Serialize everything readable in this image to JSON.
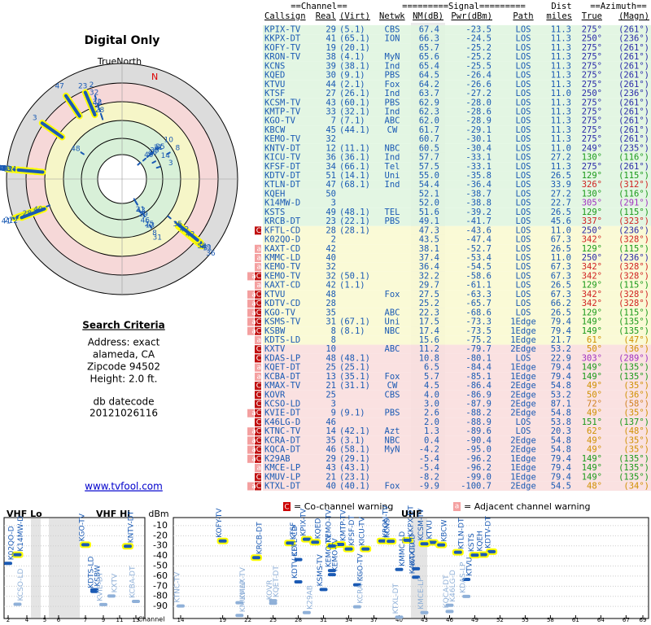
{
  "radar": {
    "title": "Digital Only",
    "north": "TrueNorth",
    "n": "N"
  },
  "criteria": {
    "heading": "Search Criteria",
    "lines": [
      "Address: exact",
      "alameda, CA",
      "Zipcode 94502",
      "Height: 2.0 ft."
    ],
    "db": "db datecode",
    "code": "20121026116",
    "link": "www.tvfool.com"
  },
  "table": {
    "head1": {
      "channel": "==Channel==",
      "signal": "=========Signal=========",
      "dist": "Dist",
      "azimuth": "==Azimuth=="
    },
    "head2": {
      "cs": "Callsign",
      "ch": "Real",
      "virt": "(Virt)",
      "net": "Netwk",
      "nm": "NM(dB)",
      "pwr": "Pwr(dBm)",
      "path": "Path",
      "dist": "miles",
      "az": "True",
      "mag": "(Magn)"
    },
    "rows": [
      {
        "cs": "KPIX-TV",
        "ch": "29",
        "virt": "(5.1)",
        "net": "CBS",
        "nm": "67.4",
        "pwr": "-23.5",
        "path": "LOS",
        "dist": "11.3",
        "az": "275°",
        "mag": "(261°)"
      },
      {
        "cs": "KKPX-DT",
        "ch": "41",
        "virt": "(65.1)",
        "net": "ION",
        "nm": "66.3",
        "pwr": "-24.5",
        "path": "LOS",
        "dist": "11.3",
        "az": "250°",
        "mag": "(236°)"
      },
      {
        "cs": "KOFY-TV",
        "ch": "19",
        "virt": "(20.1)",
        "nm": "65.7",
        "pwr": "-25.2",
        "path": "LOS",
        "dist": "11.3",
        "az": "275°",
        "mag": "(261°)"
      },
      {
        "cs": "KRON-TV",
        "ch": "38",
        "virt": "(4.1)",
        "net": "MyN",
        "nm": "65.6",
        "pwr": "-25.2",
        "path": "LOS",
        "dist": "11.3",
        "az": "275°",
        "mag": "(261°)"
      },
      {
        "cs": "KCNS",
        "ch": "39",
        "virt": "(38.1)",
        "net": "Ind",
        "nm": "65.4",
        "pwr": "-25.5",
        "path": "LOS",
        "dist": "11.3",
        "az": "275°",
        "mag": "(261°)"
      },
      {
        "cs": "KQED",
        "ch": "30",
        "virt": "(9.1)",
        "net": "PBS",
        "nm": "64.5",
        "pwr": "-26.4",
        "path": "LOS",
        "dist": "11.3",
        "az": "275°",
        "mag": "(261°)"
      },
      {
        "cs": "KTVU",
        "ch": "44",
        "virt": "(2.1)",
        "net": "Fox",
        "nm": "64.2",
        "pwr": "-26.6",
        "path": "LOS",
        "dist": "11.3",
        "az": "275°",
        "mag": "(261°)"
      },
      {
        "cs": "KTSF",
        "ch": "27",
        "virt": "(26.1)",
        "net": "Ind",
        "nm": "63.7",
        "pwr": "-27.2",
        "path": "LOS",
        "dist": "11.0",
        "az": "250°",
        "mag": "(236°)"
      },
      {
        "cs": "KCSM-TV",
        "ch": "43",
        "virt": "(60.1)",
        "net": "PBS",
        "nm": "62.9",
        "pwr": "-28.0",
        "path": "LOS",
        "dist": "11.3",
        "az": "275°",
        "mag": "(261°)"
      },
      {
        "cs": "KMTP-TV",
        "ch": "33",
        "virt": "(32.1)",
        "net": "Ind",
        "nm": "62.3",
        "pwr": "-28.6",
        "path": "LOS",
        "dist": "11.3",
        "az": "275°",
        "mag": "(261°)"
      },
      {
        "cs": "KGO-TV",
        "ch": "7",
        "virt": "(7.1)",
        "net": "ABC",
        "nm": "62.0",
        "pwr": "-28.9",
        "path": "LOS",
        "dist": "11.3",
        "az": "275°",
        "mag": "(261°)"
      },
      {
        "cs": "KBCW",
        "ch": "45",
        "virt": "(44.1)",
        "net": "CW",
        "nm": "61.7",
        "pwr": "-29.1",
        "path": "LOS",
        "dist": "11.3",
        "az": "275°",
        "mag": "(261°)"
      },
      {
        "cs": "KEMO-TV",
        "ch": "32",
        "nm": "60.7",
        "pwr": "-30.1",
        "path": "LOS",
        "dist": "11.3",
        "az": "275°",
        "mag": "(261°)"
      },
      {
        "cs": "KNTV-DT",
        "ch": "12",
        "virt": "(11.1)",
        "net": "NBC",
        "nm": "60.5",
        "pwr": "-30.4",
        "path": "LOS",
        "dist": "11.0",
        "az": "249°",
        "mag": "(235°)"
      },
      {
        "cs": "KICU-TV",
        "ch": "36",
        "virt": "(36.1)",
        "net": "Ind",
        "nm": "57.7",
        "pwr": "-33.1",
        "path": "LOS",
        "dist": "27.2",
        "az": "130°",
        "mag": "(116°)"
      },
      {
        "cs": "KFSF-DT",
        "ch": "34",
        "virt": "(66.1)",
        "net": "Tel",
        "nm": "57.5",
        "pwr": "-33.1",
        "path": "LOS",
        "dist": "11.3",
        "az": "275°",
        "mag": "(261°)"
      },
      {
        "cs": "KDTV-DT",
        "ch": "51",
        "virt": "(14.1)",
        "net": "Uni",
        "nm": "55.0",
        "pwr": "-35.8",
        "path": "LOS",
        "dist": "26.5",
        "az": "129°",
        "mag": "(115°)"
      },
      {
        "cs": "KTLN-DT",
        "ch": "47",
        "virt": "(68.1)",
        "net": "Ind",
        "nm": "54.4",
        "pwr": "-36.4",
        "path": "LOS",
        "dist": "33.9",
        "az": "326°",
        "mag": "(312°)"
      },
      {
        "cs": "KQEH",
        "ch": "50",
        "nm": "52.1",
        "pwr": "-38.7",
        "path": "LOS",
        "dist": "27.2",
        "az": "130°",
        "mag": "(116°)"
      },
      {
        "cs": "K14MW-D",
        "ch": "3",
        "nm": "52.0",
        "pwr": "-38.8",
        "path": "LOS",
        "dist": "22.7",
        "az": "305°",
        "mag": "(291°)"
      },
      {
        "cs": "KSTS",
        "ch": "49",
        "virt": "(48.1)",
        "net": "TEL",
        "nm": "51.6",
        "pwr": "-39.2",
        "path": "LOS",
        "dist": "26.5",
        "az": "129°",
        "mag": "(115°)"
      },
      {
        "cs": "KRCB-DT",
        "ch": "23",
        "virt": "(22.1)",
        "net": "PBS",
        "nm": "49.1",
        "pwr": "-41.7",
        "path": "LOS",
        "dist": "45.6",
        "az": "337°",
        "mag": "(323°)"
      },
      {
        "cs": "KFTL-CD",
        "ch": "28",
        "virt": "(28.1)",
        "nm": "47.3",
        "pwr": "-43.6",
        "path": "LOS",
        "dist": "11.0",
        "az": "250°",
        "mag": "(236°)",
        "warn": "C"
      },
      {
        "cs": "K02QO-D",
        "ch": "2",
        "nm": "43.5",
        "pwr": "-47.4",
        "path": "LOS",
        "dist": "67.3",
        "az": "342°",
        "mag": "(328°)"
      },
      {
        "cs": "KAXT-CD",
        "ch": "42",
        "nm": "38.1",
        "pwr": "-52.7",
        "path": "LOS",
        "dist": "26.5",
        "az": "129°",
        "mag": "(115°)",
        "warn": "a"
      },
      {
        "cs": "KMMC-LD",
        "ch": "40",
        "nm": "37.4",
        "pwr": "-53.4",
        "path": "LOS",
        "dist": "11.0",
        "az": "250°",
        "mag": "(236°)",
        "warn": "a"
      },
      {
        "cs": "KEMO-TV",
        "ch": "32",
        "nm": "36.4",
        "pwr": "-54.5",
        "path": "LOS",
        "dist": "67.3",
        "az": "342°",
        "mag": "(328°)",
        "warn": "a"
      },
      {
        "cs": "KEMO-TV",
        "ch": "32",
        "virt": "(50.1)",
        "nm": "32.2",
        "pwr": "-58.6",
        "path": "LOS",
        "dist": "67.3",
        "az": "342°",
        "mag": "(328°)",
        "warn": "aC"
      },
      {
        "cs": "KAXT-CD",
        "ch": "42",
        "virt": "(1.1)",
        "nm": "29.7",
        "pwr": "-61.1",
        "path": "LOS",
        "dist": "26.5",
        "az": "129°",
        "mag": "(115°)",
        "warn": "a"
      },
      {
        "cs": "KTVU",
        "ch": "48",
        "net": "Fox",
        "nm": "27.5",
        "pwr": "-63.3",
        "path": "LOS",
        "dist": "67.3",
        "az": "342°",
        "mag": "(328°)",
        "warn": "aC"
      },
      {
        "cs": "KDTV-CD",
        "ch": "28",
        "nm": "25.2",
        "pwr": "-65.7",
        "path": "LOS",
        "dist": "66.2",
        "az": "342°",
        "mag": "(328°)",
        "warn": "aC"
      },
      {
        "cs": "KGO-TV",
        "ch": "35",
        "net": "ABC",
        "nm": "22.3",
        "pwr": "-68.6",
        "path": "LOS",
        "dist": "26.5",
        "az": "129°",
        "mag": "(115°)",
        "warn": "aC"
      },
      {
        "cs": "KSMS-TV",
        "ch": "31",
        "virt": "(67.1)",
        "net": "Uni",
        "nm": "17.5",
        "pwr": "-73.3",
        "path": "1Edge",
        "dist": "79.4",
        "az": "149°",
        "mag": "(135°)",
        "warn": "aC"
      },
      {
        "cs": "KSBW",
        "ch": "8",
        "virt": "(8.1)",
        "net": "NBC",
        "nm": "17.4",
        "pwr": "-73.5",
        "path": "1Edge",
        "dist": "79.4",
        "az": "149°",
        "mag": "(135°)",
        "warn": "aC"
      },
      {
        "cs": "KDTS-LD",
        "ch": "8",
        "nm": "15.6",
        "pwr": "-75.2",
        "path": "1Edge",
        "dist": "21.7",
        "az": "61°",
        "mag": "(47°)",
        "warn": "a"
      },
      {
        "cs": "KXTV",
        "ch": "10",
        "net": "ABC",
        "nm": "11.2",
        "pwr": "-79.7",
        "path": "2Edge",
        "dist": "53.2",
        "az": "50°",
        "mag": "(36°)",
        "warn": "C"
      },
      {
        "cs": "KDAS-LP",
        "ch": "48",
        "virt": "(48.1)",
        "nm": "10.8",
        "pwr": "-80.1",
        "path": "LOS",
        "dist": "22.9",
        "az": "303°",
        "mag": "(289°)",
        "warn": "C"
      },
      {
        "cs": "KQET-DT",
        "ch": "25",
        "virt": "(25.1)",
        "nm": "6.5",
        "pwr": "-84.4",
        "path": "1Edge",
        "dist": "79.4",
        "az": "149°",
        "mag": "(135°)",
        "warn": "a"
      },
      {
        "cs": "KCBA-DT",
        "ch": "13",
        "virt": "(35.1)",
        "net": "Fox",
        "nm": "5.7",
        "pwr": "-85.1",
        "path": "1Edge",
        "dist": "79.4",
        "az": "149°",
        "mag": "(135°)",
        "warn": "a"
      },
      {
        "cs": "KMAX-TV",
        "ch": "21",
        "virt": "(31.1)",
        "net": "CW",
        "nm": "4.5",
        "pwr": "-86.4",
        "path": "2Edge",
        "dist": "54.8",
        "az": "49°",
        "mag": "(35°)",
        "warn": "C"
      },
      {
        "cs": "KOVR",
        "ch": "25",
        "net": "CBS",
        "nm": "4.0",
        "pwr": "-86.9",
        "path": "2Edge",
        "dist": "53.2",
        "az": "50°",
        "mag": "(36°)",
        "warn": "C"
      },
      {
        "cs": "KCSO-LD",
        "ch": "3",
        "nm": "3.0",
        "pwr": "-87.9",
        "path": "2Edge",
        "dist": "87.1",
        "az": "72°",
        "mag": "(58°)",
        "warn": "C"
      },
      {
        "cs": "KVIE-DT",
        "ch": "9",
        "virt": "(9.1)",
        "net": "PBS",
        "nm": "2.6",
        "pwr": "-88.2",
        "path": "2Edge",
        "dist": "54.8",
        "az": "49°",
        "mag": "(35°)",
        "warn": "aC"
      },
      {
        "cs": "K46LG-D",
        "ch": "46",
        "nm": "2.0",
        "pwr": "-88.9",
        "path": "LOS",
        "dist": "53.8",
        "az": "151°",
        "mag": "(137°)",
        "warn": "C"
      },
      {
        "cs": "KTNC-TV",
        "ch": "14",
        "virt": "(42.1)",
        "net": "Azt",
        "nm": "1.3",
        "pwr": "-89.6",
        "path": "LOS",
        "dist": "20.3",
        "az": "62°",
        "mag": "(48°)",
        "warn": "aC"
      },
      {
        "cs": "KCRA-DT",
        "ch": "35",
        "virt": "(3.1)",
        "net": "NBC",
        "nm": "0.4",
        "pwr": "-90.4",
        "path": "2Edge",
        "dist": "54.8",
        "az": "49°",
        "mag": "(35°)",
        "warn": "aC"
      },
      {
        "cs": "KQCA-DT",
        "ch": "46",
        "virt": "(58.1)",
        "net": "MyN",
        "nm": "-4.2",
        "pwr": "-95.0",
        "path": "2Edge",
        "dist": "54.8",
        "az": "49°",
        "mag": "(35°)",
        "warn": "aC"
      },
      {
        "cs": "K29AB",
        "ch": "29",
        "virt": "(29.1)",
        "nm": "-5.4",
        "pwr": "-96.2",
        "path": "1Edge",
        "dist": "79.4",
        "az": "149°",
        "mag": "(135°)",
        "warn": "aC"
      },
      {
        "cs": "KMCE-LP",
        "ch": "43",
        "virt": "(43.1)",
        "nm": "-5.4",
        "pwr": "-96.2",
        "path": "1Edge",
        "dist": "79.4",
        "az": "149°",
        "mag": "(135°)",
        "warn": "a"
      },
      {
        "cs": "KMUV-LP",
        "ch": "21",
        "virt": "(23.1)",
        "nm": "-8.2",
        "pwr": "-99.0",
        "path": "1Edge",
        "dist": "79.4",
        "az": "149°",
        "mag": "(135°)",
        "warn": "C"
      },
      {
        "cs": "KTXL-DT",
        "ch": "40",
        "virt": "(40.1)",
        "net": "Fox",
        "nm": "-9.9",
        "pwr": "-100.7",
        "path": "2Edge",
        "dist": "54.5",
        "az": "48°",
        "mag": "(34°)",
        "warn": "aC"
      }
    ]
  },
  "spectrum": {
    "co_key": "C",
    "co_text": "= Co-channel warning",
    "adj_key": "a",
    "adj_text": "= Adjacent channel warning",
    "vhf_lo": "VHF Lo",
    "vhf_hi": "VHF Hi",
    "uhf": "UHF",
    "unit": "dBm",
    "channel": "Channel",
    "vhf_ticks": [
      2,
      4,
      5,
      6,
      7,
      9,
      11,
      13
    ],
    "uhf_ticks": [
      14,
      19,
      22,
      25,
      28,
      31,
      34,
      37,
      40,
      43,
      46,
      49,
      52,
      55,
      58,
      61,
      64,
      67,
      69
    ],
    "ylim": [
      -102,
      -2
    ],
    "yticks": [
      -10,
      -20,
      -30,
      -40,
      -50,
      -60,
      -70,
      -80,
      -90
    ]
  }
}
